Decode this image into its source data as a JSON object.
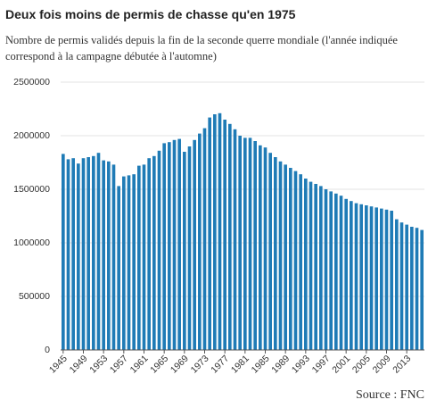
{
  "chart_data": {
    "type": "bar",
    "title": "Deux fois moins de permis de chasse qu'en 1975",
    "subtitle": "Nombre de permis validés depuis la fin de la seconde querre mondiale (l'année indiquée correspond à la campagne débutée à l'automne)",
    "source": "Source : FNC",
    "categories": [
      "1945",
      null,
      null,
      null,
      "1949",
      null,
      null,
      null,
      "1953",
      null,
      null,
      null,
      "1957",
      null,
      null,
      null,
      "1961",
      null,
      null,
      null,
      "1965",
      null,
      null,
      null,
      "1969",
      null,
      null,
      null,
      "1973",
      null,
      null,
      null,
      "1977",
      null,
      null,
      null,
      "1981",
      null,
      null,
      null,
      "1985",
      null,
      null,
      null,
      "1989",
      null,
      null,
      null,
      "1993",
      null,
      null,
      null,
      "1997",
      null,
      null,
      null,
      "2001",
      null,
      null,
      null,
      "2005",
      null,
      null,
      null,
      "2009",
      null,
      null,
      null,
      "2013",
      null,
      null,
      null
    ],
    "values": [
      1830000,
      1780000,
      1790000,
      1740000,
      1790000,
      1800000,
      1810000,
      1840000,
      1770000,
      1760000,
      1730000,
      1530000,
      1620000,
      1630000,
      1640000,
      1720000,
      1730000,
      1790000,
      1810000,
      1860000,
      1930000,
      1940000,
      1960000,
      1970000,
      1850000,
      1900000,
      1960000,
      2020000,
      2070000,
      2170000,
      2200000,
      2210000,
      2150000,
      2110000,
      2060000,
      2000000,
      1980000,
      1980000,
      1950000,
      1910000,
      1890000,
      1840000,
      1800000,
      1760000,
      1730000,
      1700000,
      1670000,
      1640000,
      1600000,
      1570000,
      1550000,
      1530000,
      1500000,
      1480000,
      1460000,
      1440000,
      1410000,
      1390000,
      1370000,
      1360000,
      1350000,
      1340000,
      1330000,
      1320000,
      1310000,
      1300000,
      1220000,
      1190000,
      1170000,
      1150000,
      1140000,
      1120000
    ],
    "color": "#1f7bb6",
    "ylim": [
      0,
      2500000
    ],
    "yticks": [
      0,
      500000,
      1000000,
      1500000,
      2000000,
      2500000
    ],
    "grid": true
  }
}
